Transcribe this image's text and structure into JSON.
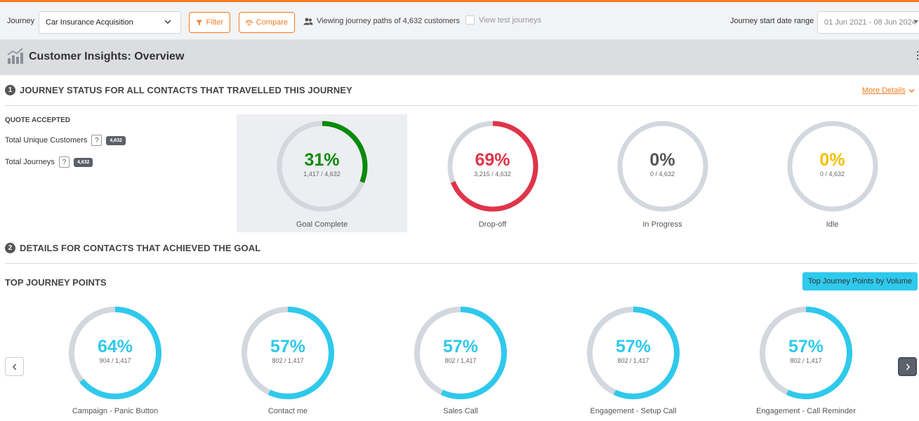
{
  "toolbar": {
    "journey_label": "Journey",
    "journey_value": "Car Insurance Acquisition",
    "filter_label": "Filter",
    "compare_label": "Compare",
    "viewing_text": "Viewing journey paths of 4,632 customers",
    "test_journeys_label": "View test journeys",
    "date_range_label": "Journey start date range",
    "date_range_value": "01 Jun 2021 - 08 Jun 2024"
  },
  "page": {
    "title": "Customer Insights: Overview"
  },
  "section1": {
    "number": "1",
    "title": "JOURNEY STATUS FOR ALL CONTACTS THAT TRAVELLED THIS JOURNEY",
    "more_details": "More Details",
    "goal_name": "QUOTE ACCEPTED",
    "stats": [
      {
        "label": "Total Unique Customers",
        "help": "?",
        "badge": "4,632"
      },
      {
        "label": "Total Journeys",
        "help": "?",
        "badge": "4,632"
      }
    ],
    "status_cards": [
      {
        "label": "Goal Complete",
        "percent_text": "31%",
        "count_text": "1,417 / 4,632",
        "percent": 31,
        "color": "#0a8a0a",
        "active": true
      },
      {
        "label": "Drop-off",
        "percent_text": "69%",
        "count_text": "3,215 / 4,632",
        "percent": 69,
        "color": "#e0344a",
        "active": false
      },
      {
        "label": "In Progress",
        "percent_text": "0%",
        "count_text": "0 / 4,632",
        "percent": 0,
        "color": "#555555",
        "active": false
      },
      {
        "label": "Idle",
        "percent_text": "0%",
        "count_text": "0 / 4,632",
        "percent": 0,
        "color": "#f5c000",
        "active": false
      }
    ]
  },
  "section2": {
    "number": "2",
    "title": "DETAILS FOR CONTACTS THAT ACHIEVED THE GOAL",
    "subtitle": "TOP JOURNEY POINTS",
    "volume_button": "Top Journey Points by Volume",
    "prev_icon": "chevron-left-icon",
    "next_icon": "chevron-right-icon",
    "journey_points": [
      {
        "label": "Campaign - Panic Button",
        "percent_text": "64%",
        "count_text": "904 / 1,417",
        "percent": 64
      },
      {
        "label": "Contact me",
        "percent_text": "57%",
        "count_text": "802 / 1,417",
        "percent": 57
      },
      {
        "label": "Sales Call",
        "percent_text": "57%",
        "count_text": "802 / 1,417",
        "percent": 57
      },
      {
        "label": "Engagement - Setup Call",
        "percent_text": "57%",
        "count_text": "802 / 1,417",
        "percent": 57
      },
      {
        "label": "Engagement - Call Reminder",
        "percent_text": "57%",
        "count_text": "802 / 1,417",
        "percent": 57
      }
    ]
  },
  "colors": {
    "accent": "#f47a20",
    "ring_track": "#d3d7de",
    "journey_point": "#2fc9ec"
  }
}
